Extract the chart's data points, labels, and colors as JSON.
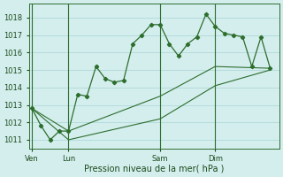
{
  "bg_color": "#d4eeee",
  "grid_color": "#b0d8d8",
  "line_color": "#2d6e2d",
  "marker_color": "#2d6e2d",
  "text_color": "#1a4a1a",
  "xlabel": "Pression niveau de la mer( hPa )",
  "ylim": [
    1010.5,
    1018.8
  ],
  "yticks": [
    1011,
    1012,
    1013,
    1014,
    1015,
    1016,
    1017,
    1018
  ],
  "xtick_labels": [
    "Ven",
    "Lun",
    "Sam",
    "Dim"
  ],
  "xtick_positions": [
    0,
    4,
    14,
    20
  ],
  "vlines": [
    0,
    4,
    14,
    20
  ],
  "xlim": [
    -0.3,
    27.0
  ],
  "series1_x": [
    0,
    1,
    2,
    3,
    4,
    5,
    6,
    7,
    8,
    9,
    10,
    11,
    12,
    13,
    14,
    15,
    16,
    17,
    18,
    19,
    20,
    21,
    22,
    23,
    24,
    25,
    26
  ],
  "series1_y": [
    1012.8,
    1011.8,
    1011.0,
    1011.5,
    1011.5,
    1013.6,
    1013.5,
    1015.2,
    1014.5,
    1014.3,
    1014.4,
    1016.5,
    1017.0,
    1017.6,
    1017.6,
    1016.5,
    1015.8,
    1016.5,
    1016.9,
    1018.2,
    1017.5,
    1017.1,
    1017.0,
    1016.9,
    1015.2,
    1016.9,
    1015.1
  ],
  "series2_x": [
    0,
    4,
    14,
    20,
    26
  ],
  "series2_y": [
    1012.8,
    1011.5,
    1013.5,
    1015.2,
    1015.1
  ],
  "series3_x": [
    0,
    4,
    14,
    20,
    26
  ],
  "series3_y": [
    1012.8,
    1011.0,
    1012.2,
    1014.1,
    1015.0
  ]
}
